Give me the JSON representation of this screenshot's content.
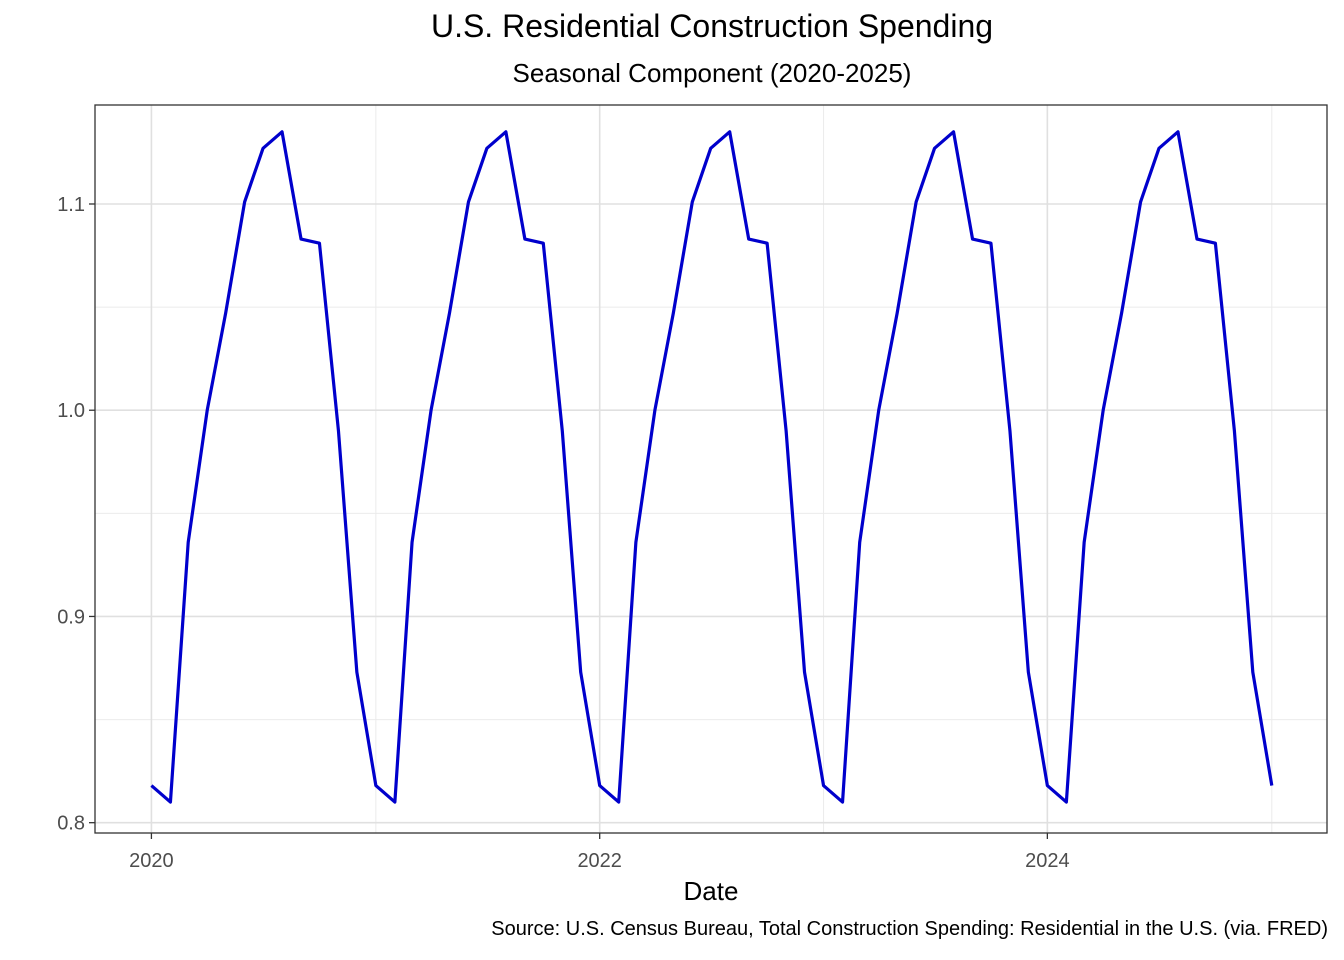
{
  "chart_data": {
    "type": "line",
    "title": "U.S. Residential Construction Spending",
    "subtitle": "Seasonal Component (2020-2025)",
    "xlabel": "Date",
    "ylabel": "",
    "caption": "Source: U.S. Census Bureau, Total Construction Spending: Residential in the U.S. (via. FRED)",
    "xlim": [
      "2019-10-01",
      "2025-04-01"
    ],
    "ylim": [
      0.795,
      1.148
    ],
    "x_ticks": [
      {
        "date": "2020-01-01",
        "label": "2020"
      },
      {
        "date": "2022-01-01",
        "label": "2022"
      },
      {
        "date": "2024-01-01",
        "label": "2024"
      }
    ],
    "y_ticks": [
      {
        "value": 0.8,
        "label": "0.8"
      },
      {
        "value": 0.9,
        "label": "0.9"
      },
      {
        "value": 1.0,
        "label": "1.0"
      },
      {
        "value": 1.1,
        "label": "1.1"
      }
    ],
    "x_minor_ticks": [
      "2021-01-01",
      "2023-01-01",
      "2025-01-01"
    ],
    "y_minor_ticks": [
      0.85,
      0.95,
      1.05
    ],
    "grid": true,
    "series": [
      {
        "color": "#0000cc",
        "x": [
          "2020-01-01",
          "2020-02-01",
          "2020-03-01",
          "2020-04-01",
          "2020-05-01",
          "2020-06-01",
          "2020-07-01",
          "2020-08-01",
          "2020-09-01",
          "2020-10-01",
          "2020-11-01",
          "2020-12-01",
          "2021-01-01",
          "2021-02-01",
          "2021-03-01",
          "2021-04-01",
          "2021-05-01",
          "2021-06-01",
          "2021-07-01",
          "2021-08-01",
          "2021-09-01",
          "2021-10-01",
          "2021-11-01",
          "2021-12-01",
          "2022-01-01",
          "2022-02-01",
          "2022-03-01",
          "2022-04-01",
          "2022-05-01",
          "2022-06-01",
          "2022-07-01",
          "2022-08-01",
          "2022-09-01",
          "2022-10-01",
          "2022-11-01",
          "2022-12-01",
          "2023-01-01",
          "2023-02-01",
          "2023-03-01",
          "2023-04-01",
          "2023-05-01",
          "2023-06-01",
          "2023-07-01",
          "2023-08-01",
          "2023-09-01",
          "2023-10-01",
          "2023-11-01",
          "2023-12-01",
          "2024-01-01",
          "2024-02-01",
          "2024-03-01",
          "2024-04-01",
          "2024-05-01",
          "2024-06-01",
          "2024-07-01",
          "2024-08-01",
          "2024-09-01",
          "2024-10-01",
          "2024-11-01",
          "2024-12-01",
          "2025-01-01"
        ],
        "y": [
          0.818,
          0.81,
          0.936,
          1.0,
          1.047,
          1.101,
          1.127,
          1.135,
          1.083,
          1.081,
          0.99,
          0.873,
          0.818,
          0.81,
          0.936,
          1.0,
          1.047,
          1.101,
          1.127,
          1.135,
          1.083,
          1.081,
          0.99,
          0.873,
          0.818,
          0.81,
          0.936,
          1.0,
          1.047,
          1.101,
          1.127,
          1.135,
          1.083,
          1.081,
          0.99,
          0.873,
          0.818,
          0.81,
          0.936,
          1.0,
          1.047,
          1.101,
          1.127,
          1.135,
          1.083,
          1.081,
          0.99,
          0.873,
          0.818,
          0.81,
          0.936,
          1.0,
          1.047,
          1.101,
          1.127,
          1.135,
          1.083,
          1.081,
          0.99,
          0.873,
          0.818
        ]
      }
    ]
  }
}
